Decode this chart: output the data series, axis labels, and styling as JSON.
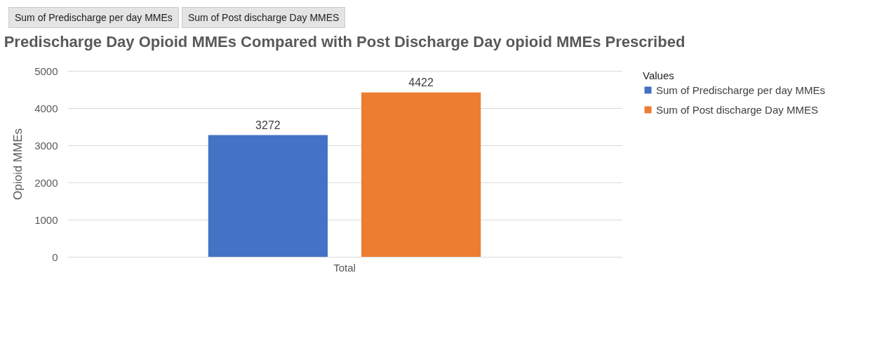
{
  "chart_data": {
    "type": "bar",
    "title": "Predischarge Day Opioid MMEs Compared with Post Discharge Day opioid MMEs Prescribed",
    "ylabel": "Opioid MMEs",
    "legend_title": "Values",
    "categories": [
      "Total"
    ],
    "series": [
      {
        "name": "Sum of Predischarge per day MMEs",
        "color": "#4472c4",
        "values": [
          3272
        ]
      },
      {
        "name": "Sum of Post discharge Day MMES",
        "color": "#ed7d31",
        "values": [
          4422
        ]
      }
    ],
    "ylim": [
      0,
      5000
    ],
    "yticks": [
      0,
      1000,
      2000,
      3000,
      4000,
      5000
    ],
    "grid": "y",
    "legend": "right",
    "data_labels": true,
    "annotations": [
      "Sum of Predischarge per day MMEs",
      "Sum of Post discharge Day MMES"
    ]
  }
}
